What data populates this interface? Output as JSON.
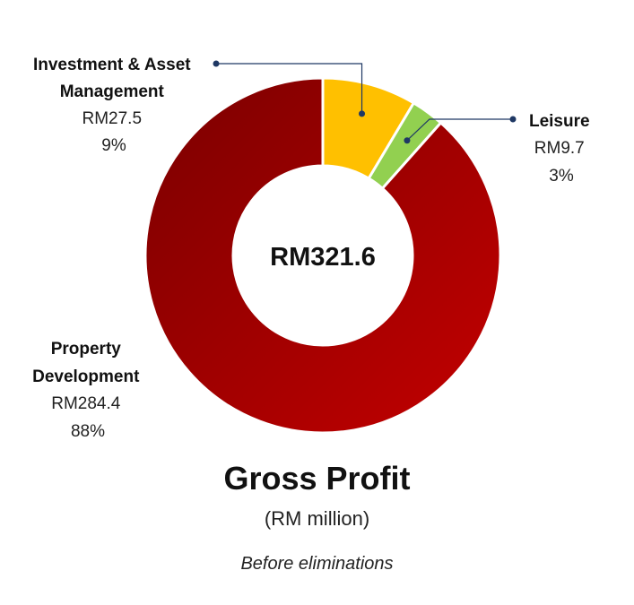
{
  "chart_data": {
    "type": "pie",
    "subtype": "donut",
    "title": "Gross Profit",
    "subtitle": "(RM million)",
    "note": "Before eliminations",
    "center_label": "RM321.6",
    "slices": [
      {
        "name_lines": [
          "Investment & Asset",
          "Management"
        ],
        "value": 27.5,
        "value_label": "RM27.5",
        "percent_label": "9%",
        "color": "#FFC000"
      },
      {
        "name_lines": [
          "Leisure"
        ],
        "value": 9.7,
        "value_label": "RM9.7",
        "percent_label": "3%",
        "color": "#92D050"
      },
      {
        "name_lines": [
          "Property",
          "Development"
        ],
        "value": 284.4,
        "value_label": "RM284.4",
        "percent_label": "88%",
        "color": "#A50000"
      }
    ],
    "leader_color": "#1F3864"
  }
}
